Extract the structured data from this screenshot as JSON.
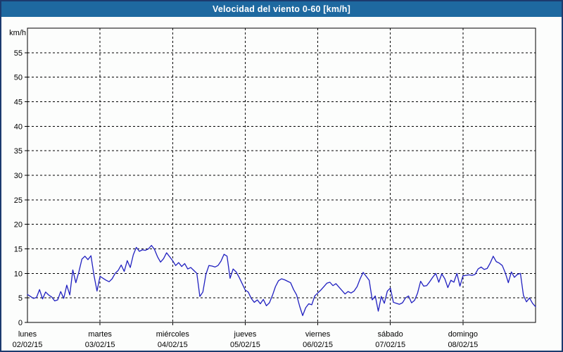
{
  "titlebar": {
    "title": "Velocidad del viento 0-60 [km/h]"
  },
  "colors": {
    "titlebar_bg": "#1E69A0",
    "titlebar_text": "#FFFFFF",
    "outer_border": "#1C3A6E",
    "background": "#FCFDFC",
    "axis": "#000000",
    "grid": "#000000",
    "text": "#000000",
    "line": "#2020C0"
  },
  "chart_data": {
    "type": "line",
    "title": "Velocidad del viento 0-60 [km/h]",
    "ylabel": "km/h",
    "ylim": [
      0,
      60
    ],
    "yticks": [
      0,
      5,
      10,
      15,
      20,
      25,
      30,
      35,
      40,
      45,
      50,
      55
    ],
    "grid": "dashed-on",
    "legend": "none",
    "sampling": "hourly",
    "days": [
      {
        "name": "lunes",
        "date": "02/02/15",
        "hourly_values": [
          5.7,
          5.3,
          4.9,
          5.1,
          6.7,
          4.8,
          6.2,
          5.6,
          5.2,
          4.4,
          4.6,
          6.3,
          4.9,
          7.6,
          5.6,
          10.7,
          8.1,
          10.3,
          12.9,
          13.5,
          12.8,
          13.6,
          9.6,
          6.4
        ]
      },
      {
        "name": "martes",
        "date": "03/02/15",
        "hourly_values": [
          9.4,
          9.0,
          8.6,
          8.3,
          8.9,
          10.0,
          10.6,
          11.7,
          10.4,
          12.6,
          11.2,
          13.8,
          15.3,
          14.5,
          14.8,
          14.7,
          15.0,
          15.7,
          14.9,
          13.4,
          12.3,
          13.0,
          14.2,
          13.4
        ]
      },
      {
        "name": "miércoles",
        "date": "04/02/15",
        "hourly_values": [
          12.6,
          11.6,
          12.2,
          11.4,
          12.0,
          10.9,
          11.2,
          10.6,
          10.0,
          5.3,
          6.2,
          9.8,
          11.6,
          11.5,
          11.3,
          11.6,
          12.5,
          13.9,
          13.5,
          9.0,
          10.9,
          10.3,
          9.2,
          7.9
        ]
      },
      {
        "name": "jueves",
        "date": "05/02/15",
        "hourly_values": [
          6.6,
          6.2,
          4.9,
          4.1,
          4.6,
          3.8,
          4.7,
          3.4,
          4.0,
          5.5,
          7.3,
          8.5,
          8.9,
          8.7,
          8.4,
          8.1,
          6.7,
          5.6,
          3.3,
          1.4,
          3.0,
          3.8,
          3.6,
          5.4
        ]
      },
      {
        "name": "viernes",
        "date": "06/02/15",
        "hourly_values": [
          6.0,
          6.6,
          7.3,
          8.0,
          8.2,
          7.5,
          7.9,
          7.2,
          6.5,
          5.8,
          6.3,
          6.0,
          6.4,
          7.3,
          8.9,
          10.2,
          9.4,
          8.6,
          4.6,
          5.4,
          2.3,
          5.3,
          3.9,
          6.4
        ]
      },
      {
        "name": "sábado",
        "date": "07/02/15",
        "hourly_values": [
          7.0,
          4.1,
          3.9,
          3.7,
          4.0,
          5.0,
          5.4,
          4.0,
          4.5,
          6.0,
          8.4,
          7.4,
          7.5,
          8.3,
          9.2,
          10.0,
          8.2,
          9.9,
          8.9,
          7.1,
          8.6,
          8.2,
          10.0,
          7.4
        ]
      },
      {
        "name": "domingo",
        "date": "08/02/15",
        "hourly_values": [
          9.5,
          9.6,
          9.7,
          9.6,
          9.8,
          10.9,
          11.3,
          10.8,
          11.0,
          12.1,
          13.5,
          12.4,
          12.1,
          11.6,
          10.1,
          8.1,
          10.3,
          9.2,
          9.8,
          10.0,
          5.5,
          4.2,
          5.0,
          3.9
        ]
      }
    ],
    "closing_value": 3.2,
    "series": [
      {
        "name": "velocidad-del-viento",
        "color": "#2020C0"
      }
    ]
  }
}
